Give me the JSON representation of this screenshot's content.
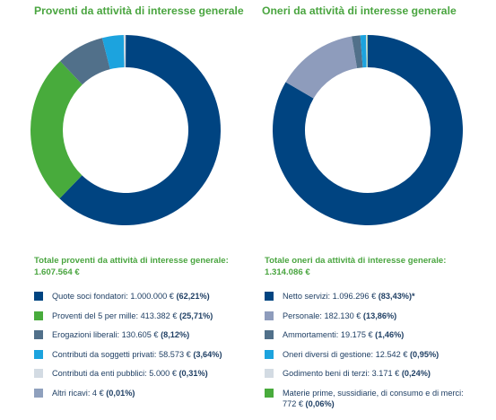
{
  "chart_data": [
    {
      "type": "pie",
      "title": "Proventi da attività di interesse generale",
      "total_label": "Totale proventi da attività di interesse generale:",
      "total_value": "1.607.564 €",
      "slices": [
        {
          "label": "Quote soci fondatori:",
          "amount": "1.000.000 €",
          "percent_text": "(62,21%)",
          "value": 62.21,
          "color": "#004481"
        },
        {
          "label": "Proventi del 5 per mille:",
          "amount": "413.382 €",
          "percent_text": "(25,71%)",
          "value": 25.71,
          "color": "#48ab3c"
        },
        {
          "label": "Erogazioni liberali:",
          "amount": "130.605 €",
          "percent_text": "(8,12%)",
          "value": 8.12,
          "color": "#51708a"
        },
        {
          "label": "Contributi da soggetti privati:",
          "amount": "58.573 €",
          "percent_text": "(3,64%)",
          "value": 3.64,
          "color": "#1ca3de"
        },
        {
          "label": "Contributi da enti pubblici:",
          "amount": "5.000 €",
          "percent_text": "(0,31%)",
          "value": 0.31,
          "color": "#d3dbe3"
        },
        {
          "label": "Altri ricavi:",
          "amount": "4 €",
          "percent_text": "(0,01%)",
          "value": 0.01,
          "color": "#8fa0bd"
        }
      ]
    },
    {
      "type": "pie",
      "title": "Oneri da attività di interesse generale",
      "total_label": "Totale oneri da attività di interesse generale:",
      "total_value": "1.314.086 €",
      "slices": [
        {
          "label": "Netto servizi:",
          "amount": "1.096.296 €",
          "percent_text": "(83,43%)*",
          "value": 83.43,
          "color": "#004481"
        },
        {
          "label": "Personale:",
          "amount": "182.130 €",
          "percent_text": "(13,86%)",
          "value": 13.86,
          "color": "#8e9cbc"
        },
        {
          "label": "Ammortamenti:",
          "amount": "19.175 €",
          "percent_text": "(1,46%)",
          "value": 1.46,
          "color": "#51708a"
        },
        {
          "label": "Oneri diversi di gestione:",
          "amount": "12.542 €",
          "percent_text": "(0,95%)",
          "value": 0.95,
          "color": "#1ca3de"
        },
        {
          "label": "Godimento beni di terzi:",
          "amount": "3.171 €",
          "percent_text": "(0,24%)",
          "value": 0.24,
          "color": "#d3dbe3"
        },
        {
          "label": "Materie prime, sussidiarie, di consumo e di merci:",
          "label_line2_amount": "772 €",
          "amount": "772 €",
          "percent_text": "(0,06%)",
          "value": 0.06,
          "color": "#48ab3c",
          "wrap": true
        }
      ]
    }
  ]
}
